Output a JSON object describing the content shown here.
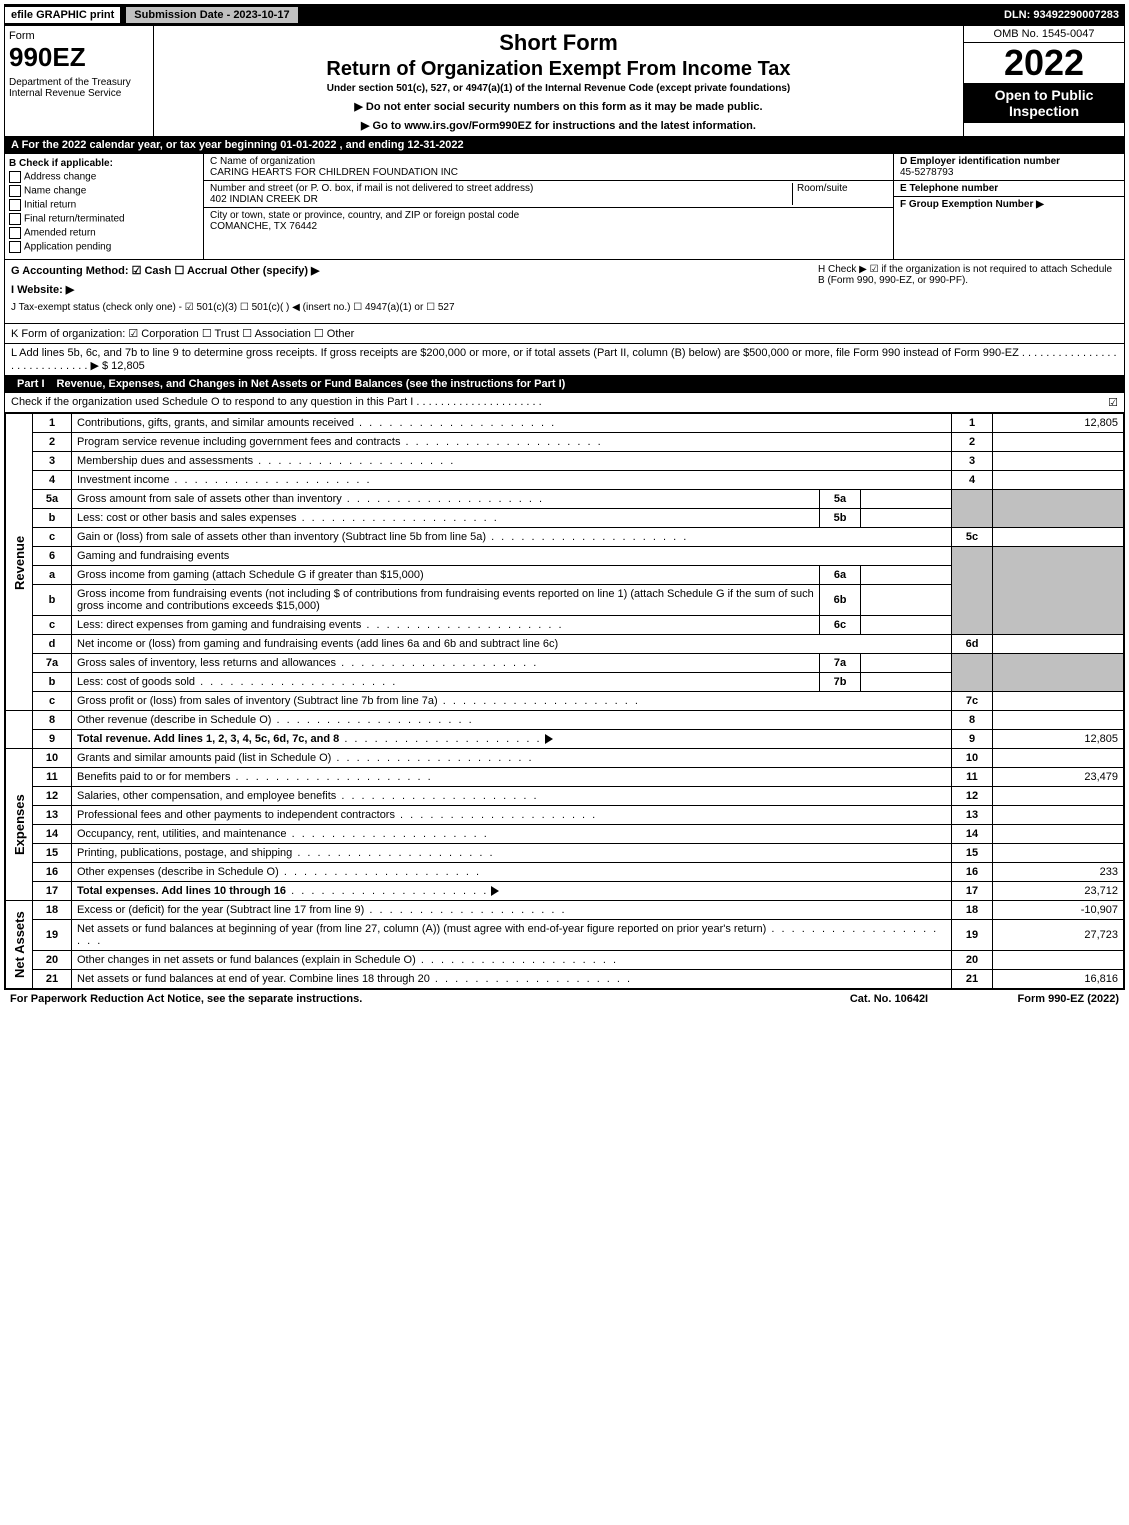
{
  "topbar": {
    "efile": "efile GRAPHIC print",
    "submission": "Submission Date - 2023-10-17",
    "dln": "DLN: 93492290007283"
  },
  "header": {
    "form_word": "Form",
    "form_code": "990EZ",
    "dept": "Department of the Treasury\nInternal Revenue Service",
    "short_form": "Short Form",
    "return_title": "Return of Organization Exempt From Income Tax",
    "under": "Under section 501(c), 527, or 4947(a)(1) of the Internal Revenue Code (except private foundations)",
    "no_ssn": "▶ Do not enter social security numbers on this form as it may be made public.",
    "goto": "▶ Go to www.irs.gov/Form990EZ for instructions and the latest information.",
    "omb": "OMB No. 1545-0047",
    "year": "2022",
    "open": "Open to Public Inspection"
  },
  "row_a": "A  For the 2022 calendar year, or tax year beginning 01-01-2022 , and ending 12-31-2022",
  "col_b": {
    "title": "B  Check if applicable:",
    "items": [
      "Address change",
      "Name change",
      "Initial return",
      "Final return/terminated",
      "Amended return",
      "Application pending"
    ]
  },
  "col_c": {
    "name_label": "C Name of organization",
    "name": "CARING HEARTS FOR CHILDREN FOUNDATION INC",
    "street_label": "Number and street (or P. O. box, if mail is not delivered to street address)",
    "room": "Room/suite",
    "street": "402 INDIAN CREEK DR",
    "city_label": "City or town, state or province, country, and ZIP or foreign postal code",
    "city": "COMANCHE, TX  76442"
  },
  "col_def": {
    "d_label": "D Employer identification number",
    "d_val": "45-5278793",
    "e_label": "E Telephone number",
    "e_val": "",
    "f_label": "F Group Exemption Number  ▶",
    "f_val": ""
  },
  "ghi": {
    "g": "G Accounting Method:   ☑ Cash  ☐ Accrual  Other (specify) ▶",
    "h": "H  Check ▶ ☑ if the organization is not required to attach Schedule B (Form 990, 990-EZ, or 990-PF).",
    "i": "I Website: ▶",
    "j": "J Tax-exempt status (check only one) - ☑ 501(c)(3) ☐ 501(c)(  ) ◀ (insert no.) ☐ 4947(a)(1) or ☐ 527"
  },
  "line_k": "K Form of organization:  ☑ Corporation  ☐ Trust  ☐ Association  ☐ Other",
  "line_l": {
    "text": "L Add lines 5b, 6c, and 7b to line 9 to determine gross receipts. If gross receipts are $200,000 or more, or if total assets (Part II, column (B) below) are $500,000 or more, file Form 990 instead of Form 990-EZ  . . . . . . . . . . . . . . . . . . . . . . . . . . . . . ▶ $",
    "amount": "12,805"
  },
  "part1": {
    "title": "Part I",
    "heading": "Revenue, Expenses, and Changes in Net Assets or Fund Balances (see the instructions for Part I)",
    "sub": "Check if the organization used Schedule O to respond to any question in this Part I . . . . . . . . . . . . . . . . . . . . .",
    "chk": "☑"
  },
  "sections": {
    "revenue": "Revenue",
    "expenses": "Expenses",
    "netassets": "Net Assets"
  },
  "lines": {
    "l1": {
      "n": "1",
      "t": "Contributions, gifts, grants, and similar amounts received",
      "num": "1",
      "amt": "12,805"
    },
    "l2": {
      "n": "2",
      "t": "Program service revenue including government fees and contracts",
      "num": "2",
      "amt": ""
    },
    "l3": {
      "n": "3",
      "t": "Membership dues and assessments",
      "num": "3",
      "amt": ""
    },
    "l4": {
      "n": "4",
      "t": "Investment income",
      "num": "4",
      "amt": ""
    },
    "l5a": {
      "n": "5a",
      "t": "Gross amount from sale of assets other than inventory",
      "sub": "5a"
    },
    "l5b": {
      "n": "b",
      "t": "Less: cost or other basis and sales expenses",
      "sub": "5b"
    },
    "l5c": {
      "n": "c",
      "t": "Gain or (loss) from sale of assets other than inventory (Subtract line 5b from line 5a)",
      "num": "5c",
      "amt": ""
    },
    "l6": {
      "n": "6",
      "t": "Gaming and fundraising events"
    },
    "l6a": {
      "n": "a",
      "t": "Gross income from gaming (attach Schedule G if greater than $15,000)",
      "sub": "6a"
    },
    "l6b": {
      "n": "b",
      "t": "Gross income from fundraising events (not including $            of contributions from fundraising events reported on line 1) (attach Schedule G if the sum of such gross income and contributions exceeds $15,000)",
      "sub": "6b"
    },
    "l6c": {
      "n": "c",
      "t": "Less: direct expenses from gaming and fundraising events",
      "sub": "6c"
    },
    "l6d": {
      "n": "d",
      "t": "Net income or (loss) from gaming and fundraising events (add lines 6a and 6b and subtract line 6c)",
      "num": "6d",
      "amt": ""
    },
    "l7a": {
      "n": "7a",
      "t": "Gross sales of inventory, less returns and allowances",
      "sub": "7a"
    },
    "l7b": {
      "n": "b",
      "t": "Less: cost of goods sold",
      "sub": "7b"
    },
    "l7c": {
      "n": "c",
      "t": "Gross profit or (loss) from sales of inventory (Subtract line 7b from line 7a)",
      "num": "7c",
      "amt": ""
    },
    "l8": {
      "n": "8",
      "t": "Other revenue (describe in Schedule O)",
      "num": "8",
      "amt": ""
    },
    "l9": {
      "n": "9",
      "t": "Total revenue. Add lines 1, 2, 3, 4, 5c, 6d, 7c, and 8",
      "num": "9",
      "amt": "12,805",
      "bold": true
    },
    "l10": {
      "n": "10",
      "t": "Grants and similar amounts paid (list in Schedule O)",
      "num": "10",
      "amt": ""
    },
    "l11": {
      "n": "11",
      "t": "Benefits paid to or for members",
      "num": "11",
      "amt": "23,479"
    },
    "l12": {
      "n": "12",
      "t": "Salaries, other compensation, and employee benefits",
      "num": "12",
      "amt": ""
    },
    "l13": {
      "n": "13",
      "t": "Professional fees and other payments to independent contractors",
      "num": "13",
      "amt": ""
    },
    "l14": {
      "n": "14",
      "t": "Occupancy, rent, utilities, and maintenance",
      "num": "14",
      "amt": ""
    },
    "l15": {
      "n": "15",
      "t": "Printing, publications, postage, and shipping",
      "num": "15",
      "amt": ""
    },
    "l16": {
      "n": "16",
      "t": "Other expenses (describe in Schedule O)",
      "num": "16",
      "amt": "233"
    },
    "l17": {
      "n": "17",
      "t": "Total expenses. Add lines 10 through 16",
      "num": "17",
      "amt": "23,712",
      "bold": true
    },
    "l18": {
      "n": "18",
      "t": "Excess or (deficit) for the year (Subtract line 17 from line 9)",
      "num": "18",
      "amt": "-10,907"
    },
    "l19": {
      "n": "19",
      "t": "Net assets or fund balances at beginning of year (from line 27, column (A)) (must agree with end-of-year figure reported on prior year's return)",
      "num": "19",
      "amt": "27,723"
    },
    "l20": {
      "n": "20",
      "t": "Other changes in net assets or fund balances (explain in Schedule O)",
      "num": "20",
      "amt": ""
    },
    "l21": {
      "n": "21",
      "t": "Net assets or fund balances at end of year. Combine lines 18 through 20",
      "num": "21",
      "amt": "16,816"
    }
  },
  "footer": {
    "left": "For Paperwork Reduction Act Notice, see the separate instructions.",
    "mid": "Cat. No. 10642I",
    "right": "Form 990-EZ (2022)"
  },
  "colors": {
    "black": "#000000",
    "white": "#ffffff",
    "grey": "#c0c0c0"
  }
}
